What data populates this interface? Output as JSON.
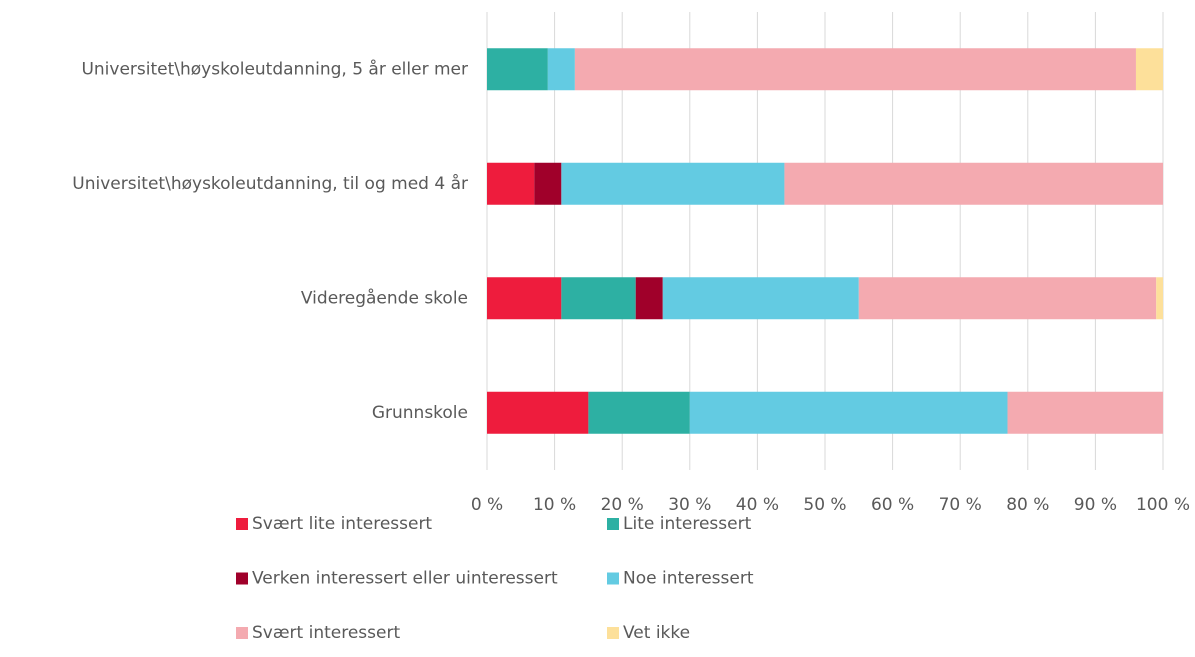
{
  "chart_data": {
    "type": "stacked_barh",
    "categories": [
      "Universitet\\høyskoleutdanning, 5 år eller mer",
      "Universitet\\høyskoleutdanning, til og med 4 år",
      "Videregående skole",
      "Grunnskole"
    ],
    "series": [
      {
        "name": "Svært lite interessert",
        "color": "#ee1c3d",
        "values": [
          0,
          7,
          11,
          15
        ]
      },
      {
        "name": "Lite interessert",
        "color": "#2db0a3",
        "values": [
          9,
          0,
          11,
          15
        ]
      },
      {
        "name": "Verken interessert eller uinteressert",
        "color": "#a0002a",
        "values": [
          0,
          4,
          4,
          0
        ]
      },
      {
        "name": "Noe interessert",
        "color": "#63cbe2",
        "values": [
          4,
          33,
          29,
          47
        ]
      },
      {
        "name": "Svært interessert",
        "color": "#f4aab0",
        "values": [
          83,
          56,
          44,
          23
        ]
      },
      {
        "name": "Vet ikke",
        "color": "#fde09a",
        "values": [
          4,
          0,
          1,
          0
        ]
      }
    ],
    "xlim": [
      0,
      100
    ],
    "xticks": [
      {
        "value": 0,
        "label": "0 %"
      },
      {
        "value": 10,
        "label": "10 %"
      },
      {
        "value": 20,
        "label": "20 %"
      },
      {
        "value": 30,
        "label": "30 %"
      },
      {
        "value": 40,
        "label": "40 %"
      },
      {
        "value": 50,
        "label": "50 %"
      },
      {
        "value": 60,
        "label": "60 %"
      },
      {
        "value": 70,
        "label": "70 %"
      },
      {
        "value": 80,
        "label": "80 %"
      },
      {
        "value": 90,
        "label": "90 %"
      },
      {
        "value": 100,
        "label": "100 %"
      }
    ],
    "grid": true,
    "legend": "bottom"
  }
}
